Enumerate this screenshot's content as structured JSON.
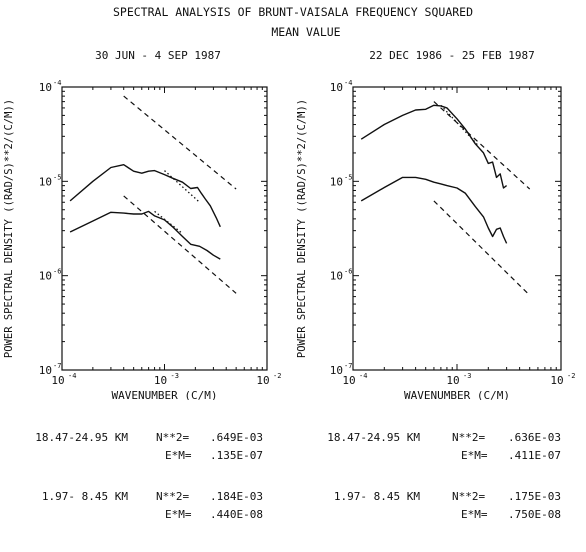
{
  "title": "SPECTRAL ANALYSIS OF BRUNT-VAISALA FREQUENCY SQUARED",
  "subtitle": "MEAN VALUE",
  "chart_data": [
    {
      "type": "line",
      "title": "30 JUN - 4 SEP 1987",
      "xlabel": "WAVENUMBER (C/M)",
      "ylabel": "POWER SPECTRAL DENSITY ((RAD/S)**2/(C/M))",
      "xscale": "log",
      "yscale": "log",
      "xlim": [
        0.0001,
        0.01
      ],
      "ylim": [
        1e-07,
        0.0001
      ],
      "xticks": [
        {
          "value": 0.0001,
          "base": "10",
          "exp": "-4"
        },
        {
          "value": 0.001,
          "base": "10",
          "exp": "-3"
        },
        {
          "value": 0.01,
          "base": "10",
          "exp": "-2"
        }
      ],
      "yticks": [
        {
          "value": 1e-07,
          "base": "10",
          "exp": "-7"
        },
        {
          "value": 1e-06,
          "base": "10",
          "exp": "-6"
        },
        {
          "value": 1e-05,
          "base": "10",
          "exp": "-5"
        },
        {
          "value": 0.0001,
          "base": "10",
          "exp": "-4"
        }
      ],
      "grid": false,
      "series": [
        {
          "style": "solid",
          "x": [
            0.00012,
            0.0002,
            0.0003,
            0.0004,
            0.0005,
            0.0006,
            0.0007,
            0.0008,
            0.001,
            0.0012,
            0.0015,
            0.0018,
            0.0021,
            0.0023,
            0.0025,
            0.0028,
            0.0032,
            0.0035
          ],
          "y": [
            6.2e-06,
            1e-05,
            1.4e-05,
            1.5e-05,
            1.28e-05,
            1.22e-05,
            1.28e-05,
            1.3e-05,
            1.18e-05,
            1.08e-05,
            9.8e-06,
            8.4e-06,
            8.6e-06,
            7.4e-06,
            6.5e-06,
            5.5e-06,
            4.1e-06,
            3.3e-06
          ]
        },
        {
          "style": "solid",
          "x": [
            0.00012,
            0.0002,
            0.0003,
            0.0004,
            0.0005,
            0.0006,
            0.0007,
            0.0008,
            0.001,
            0.0012,
            0.0015,
            0.0018,
            0.0022,
            0.0026,
            0.003,
            0.0035
          ],
          "y": [
            2.9e-06,
            3.8e-06,
            4.7e-06,
            4.6e-06,
            4.5e-06,
            4.5e-06,
            4.8e-06,
            4.3e-06,
            3.9e-06,
            3.3e-06,
            2.6e-06,
            2.15e-06,
            2.05e-06,
            1.85e-06,
            1.65e-06,
            1.5e-06
          ]
        },
        {
          "style": "dashed",
          "x": [
            0.0004,
            0.005
          ],
          "y": [
            8e-05,
            8.3e-06
          ]
        },
        {
          "style": "dashed",
          "x": [
            0.0004,
            0.005
          ],
          "y": [
            7e-06,
            6.5e-07
          ]
        },
        {
          "style": "dotted",
          "x": [
            0.001,
            0.0022
          ],
          "y": [
            1.3e-05,
            6e-06
          ]
        },
        {
          "style": "dotted",
          "x": [
            0.0008,
            0.0015
          ],
          "y": [
            4.8e-06,
            2.8e-06
          ]
        }
      ],
      "stats": [
        {
          "range": "18.47-24.95 KM",
          "n_label": "N**2=",
          "n_value": ".649E-03",
          "e_label": "E*M=",
          "e_value": ".135E-07"
        },
        {
          "range": "1.97- 8.45 KM",
          "n_label": "N**2=",
          "n_value": ".184E-03",
          "e_label": "E*M=",
          "e_value": ".440E-08"
        }
      ]
    },
    {
      "type": "line",
      "title": "22 DEC 1986 - 25 FEB 1987",
      "xlabel": "WAVENUMBER (C/M)",
      "ylabel": "POWER SPECTRAL DENSITY ((RAD/S)**2/(C/M))",
      "xscale": "log",
      "yscale": "log",
      "xlim": [
        0.0001,
        0.01
      ],
      "ylim": [
        1e-07,
        0.0001
      ],
      "xticks": [
        {
          "value": 0.0001,
          "base": "10",
          "exp": "-4"
        },
        {
          "value": 0.001,
          "base": "10",
          "exp": "-3"
        },
        {
          "value": 0.01,
          "base": "10",
          "exp": "-2"
        }
      ],
      "yticks": [
        {
          "value": 1e-07,
          "base": "10",
          "exp": "-7"
        },
        {
          "value": 1e-06,
          "base": "10",
          "exp": "-6"
        },
        {
          "value": 1e-05,
          "base": "10",
          "exp": "-5"
        },
        {
          "value": 0.0001,
          "base": "10",
          "exp": "-4"
        }
      ],
      "grid": false,
      "series": [
        {
          "style": "solid",
          "x": [
            0.00012,
            0.0002,
            0.0003,
            0.0004,
            0.0005,
            0.0006,
            0.0007,
            0.0008,
            0.001,
            0.0012,
            0.0015,
            0.0018,
            0.002,
            0.0022,
            0.0024,
            0.0026,
            0.0028,
            0.003
          ],
          "y": [
            2.8e-05,
            4e-05,
            5e-05,
            5.7e-05,
            5.8e-05,
            6.4e-05,
            6.3e-05,
            6e-05,
            4.6e-05,
            3.6e-05,
            2.5e-05,
            2e-05,
            1.55e-05,
            1.6e-05,
            1.1e-05,
            1.2e-05,
            8.5e-06,
            9e-06
          ]
        },
        {
          "style": "solid",
          "x": [
            0.00012,
            0.0002,
            0.0003,
            0.0004,
            0.0005,
            0.0006,
            0.0007,
            0.0008,
            0.001,
            0.0012,
            0.0015,
            0.0018,
            0.002,
            0.0022,
            0.0024,
            0.0026,
            0.0028,
            0.003
          ],
          "y": [
            6.2e-06,
            8.6e-06,
            1.1e-05,
            1.1e-05,
            1.05e-05,
            9.8e-06,
            9.4e-06,
            9e-06,
            8.5e-06,
            7.5e-06,
            5.4e-06,
            4.2e-06,
            3.2e-06,
            2.6e-06,
            3.1e-06,
            3.2e-06,
            2.6e-06,
            2.2e-06
          ]
        },
        {
          "style": "dashed",
          "x": [
            0.0006,
            0.005
          ],
          "y": [
            7e-05,
            8.3e-06
          ]
        },
        {
          "style": "dashed",
          "x": [
            0.0006,
            0.005
          ],
          "y": [
            6.2e-06,
            6.2e-07
          ]
        },
        {
          "style": "dotted",
          "x": [
            0.0007,
            0.0016
          ],
          "y": [
            6.4e-05,
            2.4e-05
          ]
        }
      ],
      "stats": [
        {
          "range": "18.47-24.95 KM",
          "n_label": "N**2=",
          "n_value": ".636E-03",
          "e_label": "E*M=",
          "e_value": ".411E-07"
        },
        {
          "range": "1.97- 8.45 KM",
          "n_label": "N**2=",
          "n_value": ".175E-03",
          "e_label": "E*M=",
          "e_value": ".750E-08"
        }
      ]
    }
  ]
}
